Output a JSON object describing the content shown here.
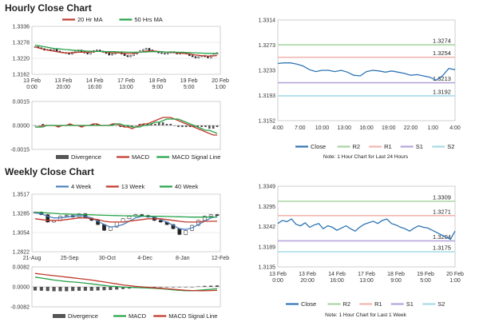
{
  "titles": {
    "hourly": "Hourly Close Chart",
    "weekly": "Weekly Close Chart"
  },
  "chart_data": [
    {
      "id": "hourly_price",
      "type": "candlestick",
      "legend": [
        {
          "name": "20 Hr MA",
          "color": "#c0392b"
        },
        {
          "name": "50 Hrs MA",
          "color": "#27a34a"
        }
      ],
      "ylim": [
        1.3162,
        1.3336
      ],
      "yticks": [
        "1.3336",
        "1.3278",
        "1.3220",
        "1.3162"
      ],
      "xticks": [
        [
          "13 Feb",
          "0:00"
        ],
        [
          "13 Feb",
          "20:00"
        ],
        [
          "14 Feb",
          "16:00"
        ],
        [
          "17 Feb",
          "13:00"
        ],
        [
          "18 Feb",
          "9:00"
        ],
        [
          "19 Feb",
          "5:00"
        ],
        [
          "20 Feb",
          "1:00"
        ]
      ],
      "close": [
        1.3262,
        1.3258,
        1.3255,
        1.325,
        1.3252,
        1.3248,
        1.3252,
        1.3246,
        1.3242,
        1.324,
        1.3238,
        1.3235,
        1.3242,
        1.3246,
        1.325,
        1.3244,
        1.324,
        1.3236,
        1.3242,
        1.3248,
        1.325,
        1.3246,
        1.3242,
        1.3238,
        1.3232,
        1.3236,
        1.324,
        1.3244,
        1.3236,
        1.323,
        1.3226,
        1.323,
        1.3236,
        1.3242,
        1.3248,
        1.3252,
        1.3256,
        1.325,
        1.3246,
        1.3244,
        1.324,
        1.3238,
        1.3236,
        1.324,
        1.3244,
        1.324,
        1.3236,
        1.3238,
        1.324,
        1.3236,
        1.323,
        1.3226,
        1.3222,
        1.3226,
        1.323,
        1.3226,
        1.3222,
        1.323,
        1.3236,
        1.324
      ],
      "ma20": [
        1.3262,
        1.3258,
        1.3255,
        1.3252,
        1.325,
        1.3248,
        1.3246,
        1.3244,
        1.3242,
        1.3241,
        1.324,
        1.324,
        1.324,
        1.3241,
        1.3242,
        1.3242,
        1.3242,
        1.3242,
        1.3243,
        1.3244,
        1.3245,
        1.3245,
        1.3244,
        1.3243,
        1.3241,
        1.324,
        1.324,
        1.324,
        1.3239,
        1.3238,
        1.3237,
        1.3237,
        1.3238,
        1.324,
        1.3242,
        1.3244,
        1.3246,
        1.3247,
        1.3247,
        1.3246,
        1.3245,
        1.3244,
        1.3243,
        1.3242,
        1.3242,
        1.3241,
        1.324,
        1.3239,
        1.3238,
        1.3237,
        1.3236,
        1.3234,
        1.3232,
        1.3231,
        1.323,
        1.3229,
        1.3228,
        1.3228,
        1.3229,
        1.323
      ],
      "ma50": [
        1.3268,
        1.3266,
        1.3264,
        1.3262,
        1.326,
        1.3258,
        1.3256,
        1.3255,
        1.3254,
        1.3253,
        1.3252,
        1.3251,
        1.325,
        1.3249,
        1.3248,
        1.3248,
        1.3247,
        1.3246,
        1.3246,
        1.3245,
        1.3245,
        1.3245,
        1.3245,
        1.3244,
        1.3244,
        1.3244,
        1.3244,
        1.3243,
        1.3243,
        1.3243,
        1.3242,
        1.3242,
        1.3242,
        1.3242,
        1.3242,
        1.3243,
        1.3243,
        1.3244,
        1.3244,
        1.3244,
        1.3244,
        1.3244,
        1.3243,
        1.3243,
        1.3243,
        1.3243,
        1.3242,
        1.3242,
        1.3242,
        1.3241,
        1.3241,
        1.324,
        1.324,
        1.3239,
        1.3239,
        1.3238,
        1.3238,
        1.3238,
        1.3238,
        1.3238
      ]
    },
    {
      "id": "hourly_macd",
      "type": "macd",
      "legend": [
        {
          "name": "Divergence",
          "color": "#555555"
        },
        {
          "name": "MACD",
          "color": "#c0392b"
        },
        {
          "name": "MACD Signal Line",
          "color": "#27a34a"
        }
      ],
      "ylim": [
        -0.0015,
        0.0015
      ],
      "yticks": [
        "0.0015",
        "0.0000",
        "-0.0015"
      ],
      "macd": [
        -0.0001,
        -0.0001,
        -0.0,
        0.0,
        0.0,
        -0.0,
        -0.0001,
        -0.0,
        0.0,
        0.0001,
        0.0,
        -0.0,
        -0.0001,
        -0.0,
        0.0,
        0.0001,
        0.0001,
        0.0,
        -0.0,
        0.0,
        0.0001,
        0.0001,
        0.0,
        -0.0001,
        -0.0001,
        -0.0002,
        -0.0001,
        0.0,
        0.0001,
        0.0001,
        0.0002,
        0.0003,
        0.0004,
        0.0005,
        0.0005,
        0.0005,
        0.0004,
        0.0003,
        0.0002,
        0.0001,
        0.0,
        -0.0001,
        -0.0002,
        -0.0003,
        -0.0004,
        -0.0005,
        -0.0006,
        -0.0006
      ],
      "signal": [
        -0.0001,
        -0.0001,
        -0.0001,
        -0.0,
        -0.0,
        -0.0,
        -0.0,
        -0.0,
        -0.0,
        0.0,
        0.0,
        0.0,
        -0.0,
        -0.0,
        -0.0,
        0.0,
        0.0,
        0.0,
        0.0,
        0.0,
        0.0,
        0.0001,
        0.0001,
        0.0,
        -0.0,
        -0.0001,
        -0.0001,
        -0.0001,
        -0.0,
        0.0,
        0.0001,
        0.0002,
        0.0002,
        0.0003,
        0.0004,
        0.0004,
        0.0004,
        0.0004,
        0.0003,
        0.0002,
        0.0001,
        0.0,
        -0.0001,
        -0.0002,
        -0.0003,
        -0.0003,
        -0.0004,
        -0.0005
      ],
      "divergence": [
        0.0,
        0.0,
        0.0001,
        0.0,
        0.0,
        0.0,
        -0.0001,
        0.0,
        0.0,
        0.0001,
        0.0,
        0.0,
        -0.0001,
        0.0,
        0.0,
        0.0001,
        0.0001,
        0.0,
        0.0,
        0.0,
        0.0001,
        0.0,
        -0.0001,
        -0.0001,
        -0.0001,
        -0.0001,
        0.0,
        0.0001,
        0.0001,
        0.0001,
        0.0001,
        0.0001,
        0.0002,
        0.0002,
        0.0001,
        0.0001,
        0.0,
        -0.0001,
        -0.0001,
        -0.0001,
        -0.0001,
        -0.0001,
        -0.0001,
        -0.0001,
        -0.0001,
        -0.0002,
        -0.0002,
        -0.0001
      ]
    },
    {
      "id": "hourly_pivot",
      "type": "line",
      "ylim": [
        1.3152,
        1.3314
      ],
      "yticks": [
        "1.3314",
        "1.3273",
        "1.3233",
        "1.3193",
        "1.3152"
      ],
      "xticks": [
        "4:00",
        "7:00",
        "10:00",
        "13:00",
        "16:00",
        "19:00",
        "22:00",
        "1:00",
        "4:00"
      ],
      "close": [
        1.3244,
        1.3245,
        1.3245,
        1.3243,
        1.324,
        1.3234,
        1.3231,
        1.3233,
        1.3233,
        1.3231,
        1.3233,
        1.323,
        1.3225,
        1.3224,
        1.3231,
        1.3233,
        1.3232,
        1.323,
        1.3232,
        1.323,
        1.3228,
        1.3225,
        1.3226,
        1.3224,
        1.3222,
        1.3217,
        1.3224,
        1.3236,
        1.3234
      ],
      "levels": [
        {
          "name": "R2",
          "value": 1.3274,
          "label": "1.3274",
          "color": "#a8d5a2"
        },
        {
          "name": "R1",
          "value": 1.3254,
          "label": "1.3254",
          "color": "#f2b8b0"
        },
        {
          "name": "S1",
          "value": 1.3213,
          "label": "1.3213",
          "color": "#b8a6d9"
        },
        {
          "name": "S2",
          "value": 1.3192,
          "label": "1.3192",
          "color": "#a6dce8"
        }
      ],
      "legend": [
        {
          "name": "Close",
          "color": "#2e75b6"
        },
        {
          "name": "R2",
          "color": "#a8d5a2"
        },
        {
          "name": "R1",
          "color": "#f2b8b0"
        },
        {
          "name": "S1",
          "color": "#b8a6d9"
        },
        {
          "name": "S2",
          "color": "#a6dce8"
        }
      ],
      "note": "Note: 1 Hour Chart for Last 24 Hours"
    },
    {
      "id": "weekly_price",
      "type": "candlestick",
      "legend": [
        {
          "name": "4 Week",
          "color": "#4a7fc1"
        },
        {
          "name": "13 Week",
          "color": "#c0392b"
        },
        {
          "name": "40 Week",
          "color": "#27a34a"
        }
      ],
      "ylim": [
        1.2822,
        1.3517
      ],
      "yticks": [
        "1.3517",
        "1.3285",
        "1.3054",
        "1.2822"
      ],
      "xticks": [
        "21-Aug",
        "25-Sep",
        "30-Oct",
        "4-Dec",
        "8-Jan",
        "12-Feb"
      ],
      "close": [
        1.33,
        1.327,
        1.318,
        1.32,
        1.325,
        1.326,
        1.324,
        1.328,
        1.323,
        1.32,
        1.315,
        1.308,
        1.312,
        1.318,
        1.322,
        1.325,
        1.327,
        1.326,
        1.324,
        1.32,
        1.318,
        1.315,
        1.31,
        1.303,
        1.308,
        1.314,
        1.32,
        1.325,
        1.327,
        1.326
      ],
      "ma4": [
        1.329,
        1.328,
        1.325,
        1.323,
        1.323,
        1.324,
        1.325,
        1.326,
        1.325,
        1.323,
        1.319,
        1.315,
        1.312,
        1.313,
        1.315,
        1.319,
        1.323,
        1.325,
        1.325,
        1.324,
        1.321,
        1.318,
        1.314,
        1.31,
        1.309,
        1.311,
        1.315,
        1.319,
        1.323,
        1.325
      ],
      "ma13": [
        1.322,
        1.321,
        1.32,
        1.32,
        1.32,
        1.321,
        1.322,
        1.323,
        1.323,
        1.322,
        1.321,
        1.319,
        1.318,
        1.318,
        1.318,
        1.319,
        1.32,
        1.321,
        1.322,
        1.322,
        1.322,
        1.321,
        1.32,
        1.319,
        1.318,
        1.318,
        1.318,
        1.319,
        1.319,
        1.319
      ],
      "ma40": [
        1.33,
        1.3295,
        1.329,
        1.3285,
        1.328,
        1.3278,
        1.3275,
        1.3272,
        1.327,
        1.3268,
        1.3265,
        1.3262,
        1.326,
        1.3258,
        1.3256,
        1.3255,
        1.3254,
        1.3253,
        1.3252,
        1.3251,
        1.325,
        1.3248,
        1.3246,
        1.3244,
        1.3242,
        1.324,
        1.324,
        1.324,
        1.324,
        1.324
      ]
    },
    {
      "id": "weekly_macd",
      "type": "macd",
      "legend": [
        {
          "name": "Divergence",
          "color": "#555555"
        },
        {
          "name": "MACD",
          "color": "#27a34a"
        },
        {
          "name": "MACD Signal Line",
          "color": "#c0392b"
        }
      ],
      "ylim": [
        -0.0082,
        0.0082
      ],
      "yticks": [
        "0.0082",
        "0.0000",
        "-0.0082"
      ],
      "macd": [
        0.004,
        0.0036,
        0.0032,
        0.0028,
        0.0025,
        0.0022,
        0.002,
        0.0018,
        0.0015,
        0.0012,
        0.0009,
        0.0006,
        0.0003,
        0.0001,
        -0.0001,
        -0.0002,
        -0.0003,
        -0.0004,
        -0.0005,
        -0.0006,
        -0.0008,
        -0.001,
        -0.0012,
        -0.0014,
        -0.0016,
        -0.0016,
        -0.0014,
        -0.0012,
        -0.001,
        -0.0008
      ],
      "signal": [
        0.0055,
        0.0052,
        0.0049,
        0.0046,
        0.0043,
        0.004,
        0.0037,
        0.0034,
        0.0031,
        0.0028,
        0.0024,
        0.002,
        0.0016,
        0.0012,
        0.0008,
        0.0005,
        0.0002,
        0.0,
        -0.0002,
        -0.0004,
        -0.0006,
        -0.0008,
        -0.001,
        -0.0012,
        -0.0014,
        -0.0015,
        -0.0016,
        -0.0016,
        -0.0015,
        -0.0014
      ],
      "divergence": [
        -0.0015,
        -0.0016,
        -0.0017,
        -0.0018,
        -0.0018,
        -0.0018,
        -0.0017,
        -0.0016,
        -0.0016,
        -0.0016,
        -0.0015,
        -0.0014,
        -0.0013,
        -0.0011,
        -0.0009,
        -0.0007,
        -0.0005,
        -0.0004,
        -0.0003,
        -0.0002,
        -0.0002,
        -0.0002,
        -0.0002,
        -0.0002,
        -0.0002,
        -0.0001,
        0.0002,
        0.0004,
        0.0005,
        0.0006
      ]
    },
    {
      "id": "weekly_pivot",
      "type": "line",
      "ylim": [
        1.3135,
        1.3349
      ],
      "yticks": [
        "1.3349",
        "1.3295",
        "1.3242",
        "1.3189",
        "1.3135"
      ],
      "xticks": [
        [
          "13 Feb",
          "0:00"
        ],
        [
          "13 Feb",
          "20:00"
        ],
        [
          "14 Feb",
          "16:00"
        ],
        [
          "17 Feb",
          "13:00"
        ],
        [
          "18 Feb",
          "9:00"
        ],
        [
          "19 Feb",
          "5:00"
        ],
        [
          "20 Feb",
          "1:00"
        ]
      ],
      "close": [
        1.325,
        1.3258,
        1.3255,
        1.3262,
        1.3248,
        1.3244,
        1.3252,
        1.324,
        1.3246,
        1.325,
        1.3236,
        1.3244,
        1.324,
        1.3232,
        1.3238,
        1.3244,
        1.3236,
        1.323,
        1.324,
        1.3248,
        1.3252,
        1.3256,
        1.325,
        1.3258,
        1.3262,
        1.325,
        1.3246,
        1.324,
        1.3236,
        1.323,
        1.3238,
        1.3244,
        1.324,
        1.3238,
        1.3232,
        1.3226,
        1.322,
        1.3214,
        1.3208,
        1.323
      ],
      "levels": [
        {
          "name": "R2",
          "value": 1.3309,
          "label": "1.3309",
          "color": "#a8d5a2"
        },
        {
          "name": "R1",
          "value": 1.3271,
          "label": "1.3271",
          "color": "#f2b8b0"
        },
        {
          "name": "S1",
          "value": 1.3204,
          "label": "1.3204",
          "color": "#b8a6d9"
        },
        {
          "name": "S2",
          "value": 1.3175,
          "label": "1.3175",
          "color": "#a6dce8"
        }
      ],
      "legend": [
        {
          "name": "Close",
          "color": "#2e75b6"
        },
        {
          "name": "R2",
          "color": "#a8d5a2"
        },
        {
          "name": "R1",
          "color": "#f2b8b0"
        },
        {
          "name": "S1",
          "color": "#b8a6d9"
        },
        {
          "name": "S2",
          "color": "#a6dce8"
        }
      ],
      "note": "Note: 1 Hour Chart for Last 1 Week"
    }
  ]
}
